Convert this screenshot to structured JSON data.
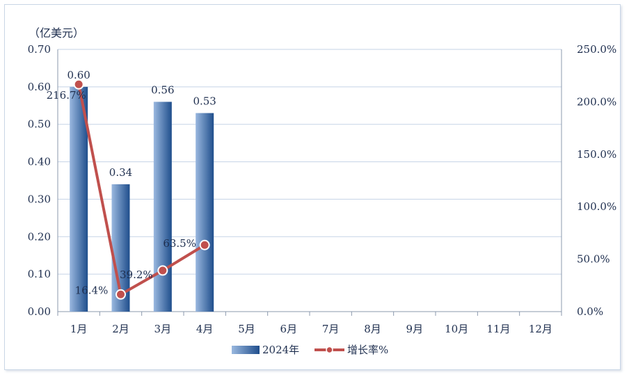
{
  "chart_data": {
    "type": "bar",
    "unit_label": "（亿美元）",
    "categories": [
      "1月",
      "2月",
      "3月",
      "4月",
      "5月",
      "6月",
      "7月",
      "8月",
      "9月",
      "10月",
      "11月",
      "12月"
    ],
    "series": [
      {
        "name": "2024年",
        "type": "bar",
        "axis": "left",
        "values": [
          0.6,
          0.34,
          0.56,
          0.53,
          null,
          null,
          null,
          null,
          null,
          null,
          null,
          null
        ],
        "labels": [
          "0.60",
          "0.34",
          "0.56",
          "0.53"
        ]
      },
      {
        "name": "增长率%",
        "type": "line",
        "axis": "right",
        "values": [
          216.7,
          16.4,
          39.2,
          63.5,
          null,
          null,
          null,
          null,
          null,
          null,
          null,
          null
        ],
        "labels": [
          "216.7%",
          "16.4%",
          "39.2%",
          "63.5%"
        ]
      }
    ],
    "y_left": {
      "ylim": [
        0,
        0.7
      ],
      "ticks": [
        "0.00",
        "0.10",
        "0.20",
        "0.30",
        "0.40",
        "0.50",
        "0.60",
        "0.70"
      ]
    },
    "y_right": {
      "ylim": [
        0,
        250
      ],
      "ticks": [
        "0.0%",
        "50.0%",
        "100.0%",
        "150.0%",
        "200.0%",
        "250.0%"
      ]
    },
    "grid": true,
    "legend_position": "bottom",
    "colors": {
      "bar_dark": "#1f4e8c",
      "bar_light": "#9ab8df",
      "line": "#c0504d",
      "grid": "#c5d3e6",
      "axis": "#8b99ad"
    }
  }
}
